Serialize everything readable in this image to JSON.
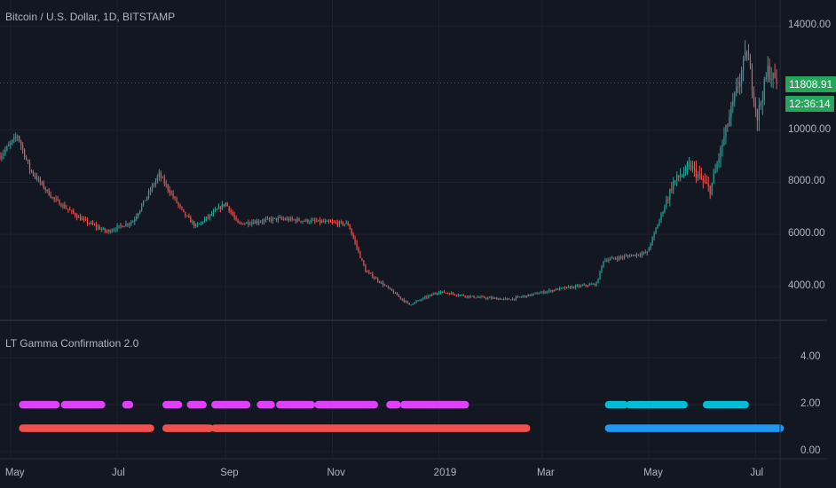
{
  "title": "Bitcoin / U.S. Dollar, 1D, BITSTAMP",
  "indicator_title": "LT Gamma Confirmation 2.0",
  "last_price": "11808.91",
  "countdown": "12:36:14",
  "colors": {
    "background": "#131722",
    "grid": "#1e222d",
    "up": "#26a69a",
    "down": "#ef5350",
    "magenta": "#e040fb",
    "red_bar": "#f2504d",
    "cyan": "#00bcd4",
    "blue": "#2196f3",
    "badge": "#26a65b",
    "divider": "#2a2e39"
  },
  "chart_data": [
    {
      "type": "candlestick",
      "title": "Bitcoin / U.S. Dollar, 1D, BITSTAMP",
      "x_range": [
        "2018-04-25",
        "2019-07-15"
      ],
      "ylim": [
        2700,
        15000
      ],
      "y_ticks": [
        {
          "value": 4000,
          "label": "4000.00"
        },
        {
          "value": 6000,
          "label": "6000.00"
        },
        {
          "value": 8000,
          "label": "8000.00"
        },
        {
          "value": 10000,
          "label": "10000.00"
        },
        {
          "value": 14000,
          "label": "14000.00"
        }
      ],
      "x_ticks": [
        {
          "date": "2018-05-01",
          "label": "May"
        },
        {
          "date": "2018-07-01",
          "label": "Jul"
        },
        {
          "date": "2018-09-01",
          "label": "Sep"
        },
        {
          "date": "2018-11-01",
          "label": "Nov"
        },
        {
          "date": "2019-01-01",
          "label": "2019"
        },
        {
          "date": "2019-03-01",
          "label": "Mar"
        },
        {
          "date": "2019-05-01",
          "label": "May"
        },
        {
          "date": "2019-07-01",
          "label": "Jul"
        }
      ],
      "last_price": 11808.91,
      "price_path": [
        [
          "2018-04-25",
          9000
        ],
        [
          "2018-05-05",
          9800
        ],
        [
          "2018-05-12",
          8500
        ],
        [
          "2018-05-25",
          7400
        ],
        [
          "2018-06-10",
          6600
        ],
        [
          "2018-06-25",
          6100
        ],
        [
          "2018-07-10",
          6500
        ],
        [
          "2018-07-25",
          8300
        ],
        [
          "2018-08-08",
          6800
        ],
        [
          "2018-08-15",
          6300
        ],
        [
          "2018-09-01",
          7200
        ],
        [
          "2018-09-08",
          6400
        ],
        [
          "2018-10-01",
          6600
        ],
        [
          "2018-11-10",
          6400
        ],
        [
          "2018-11-20",
          4600
        ],
        [
          "2018-12-15",
          3300
        ],
        [
          "2019-01-01",
          3800
        ],
        [
          "2019-01-20",
          3600
        ],
        [
          "2019-02-10",
          3500
        ],
        [
          "2019-03-10",
          3900
        ],
        [
          "2019-04-01",
          4100
        ],
        [
          "2019-04-05",
          5000
        ],
        [
          "2019-04-30",
          5300
        ],
        [
          "2019-05-15",
          8000
        ],
        [
          "2019-05-25",
          8600
        ],
        [
          "2019-06-05",
          7700
        ],
        [
          "2019-06-26",
          13000
        ],
        [
          "2019-07-02",
          10500
        ],
        [
          "2019-07-08",
          12300
        ],
        [
          "2019-07-13",
          11800
        ]
      ]
    },
    {
      "type": "timeline",
      "title": "LT Gamma Confirmation 2.0",
      "ylim": [
        -0.3,
        5.6
      ],
      "y_ticks": [
        {
          "value": 0,
          "label": "0.00"
        },
        {
          "value": 2,
          "label": "2.00"
        },
        {
          "value": 4,
          "label": "4.00"
        }
      ],
      "series": [
        {
          "level": 2,
          "color": "magenta",
          "segments": [
            [
              "2018-05-08",
              "2018-05-27"
            ],
            [
              "2018-06-01",
              "2018-06-22"
            ],
            [
              "2018-07-06",
              "2018-07-08"
            ],
            [
              "2018-07-29",
              "2018-08-05"
            ],
            [
              "2018-08-12",
              "2018-08-19"
            ],
            [
              "2018-08-26",
              "2018-09-13"
            ],
            [
              "2018-09-21",
              "2018-09-27"
            ],
            [
              "2018-10-02",
              "2018-10-20"
            ],
            [
              "2018-10-24",
              "2018-11-25"
            ],
            [
              "2018-12-04",
              "2018-12-08"
            ],
            [
              "2018-12-12",
              "2019-01-16"
            ]
          ]
        },
        {
          "level": 1,
          "color": "red_bar",
          "segments": [
            [
              "2018-05-08",
              "2018-07-20"
            ],
            [
              "2018-07-29",
              "2018-08-23"
            ],
            [
              "2018-08-26",
              "2019-02-20"
            ]
          ]
        },
        {
          "level": 2,
          "color": "cyan",
          "segments": [
            [
              "2019-04-08",
              "2019-04-17"
            ],
            [
              "2019-04-20",
              "2019-04-28"
            ],
            [
              "2019-04-29",
              "2019-05-21"
            ],
            [
              "2019-06-03",
              "2019-06-24"
            ],
            [
              "2019-06-24",
              "2019-06-25"
            ]
          ]
        },
        {
          "level": 1,
          "color": "blue",
          "segments": [
            [
              "2019-04-08",
              "2019-07-15"
            ]
          ]
        }
      ]
    }
  ]
}
